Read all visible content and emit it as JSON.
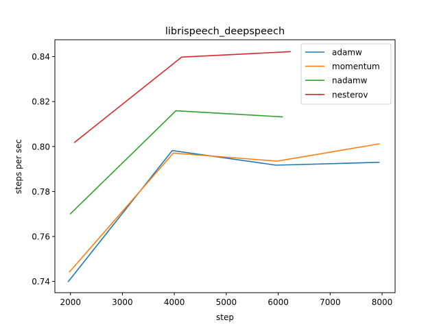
{
  "chart_data": {
    "type": "line",
    "title": "librispeech_deepspeech",
    "xlabel": "step",
    "ylabel": "steps per sec",
    "xlim": [
      1700,
      8250
    ],
    "ylim": [
      0.735,
      0.8475
    ],
    "xticks": [
      2000,
      3000,
      4000,
      5000,
      6000,
      7000,
      8000
    ],
    "yticks": [
      0.74,
      0.76,
      0.78,
      0.8,
      0.82,
      0.84
    ],
    "ytick_labels": [
      "0.74",
      "0.76",
      "0.78",
      "0.80",
      "0.82",
      "0.84"
    ],
    "grid": false,
    "legend_position": "top-right",
    "series": [
      {
        "name": "adamw",
        "color": "#1f77b4",
        "x": [
          1960,
          3960,
          5960,
          7940
        ],
        "y": [
          0.74,
          0.7982,
          0.7917,
          0.793
        ]
      },
      {
        "name": "momentum",
        "color": "#ff7f0e",
        "x": [
          1980,
          3980,
          5980,
          7940
        ],
        "y": [
          0.7442,
          0.7971,
          0.7935,
          0.8012
        ]
      },
      {
        "name": "nadamw",
        "color": "#2ca02c",
        "x": [
          2000,
          4030,
          6080
        ],
        "y": [
          0.7701,
          0.8159,
          0.8132
        ]
      },
      {
        "name": "nesterov",
        "color": "#d62728",
        "x": [
          2080,
          4140,
          6230
        ],
        "y": [
          0.8019,
          0.8398,
          0.8422
        ]
      }
    ]
  }
}
